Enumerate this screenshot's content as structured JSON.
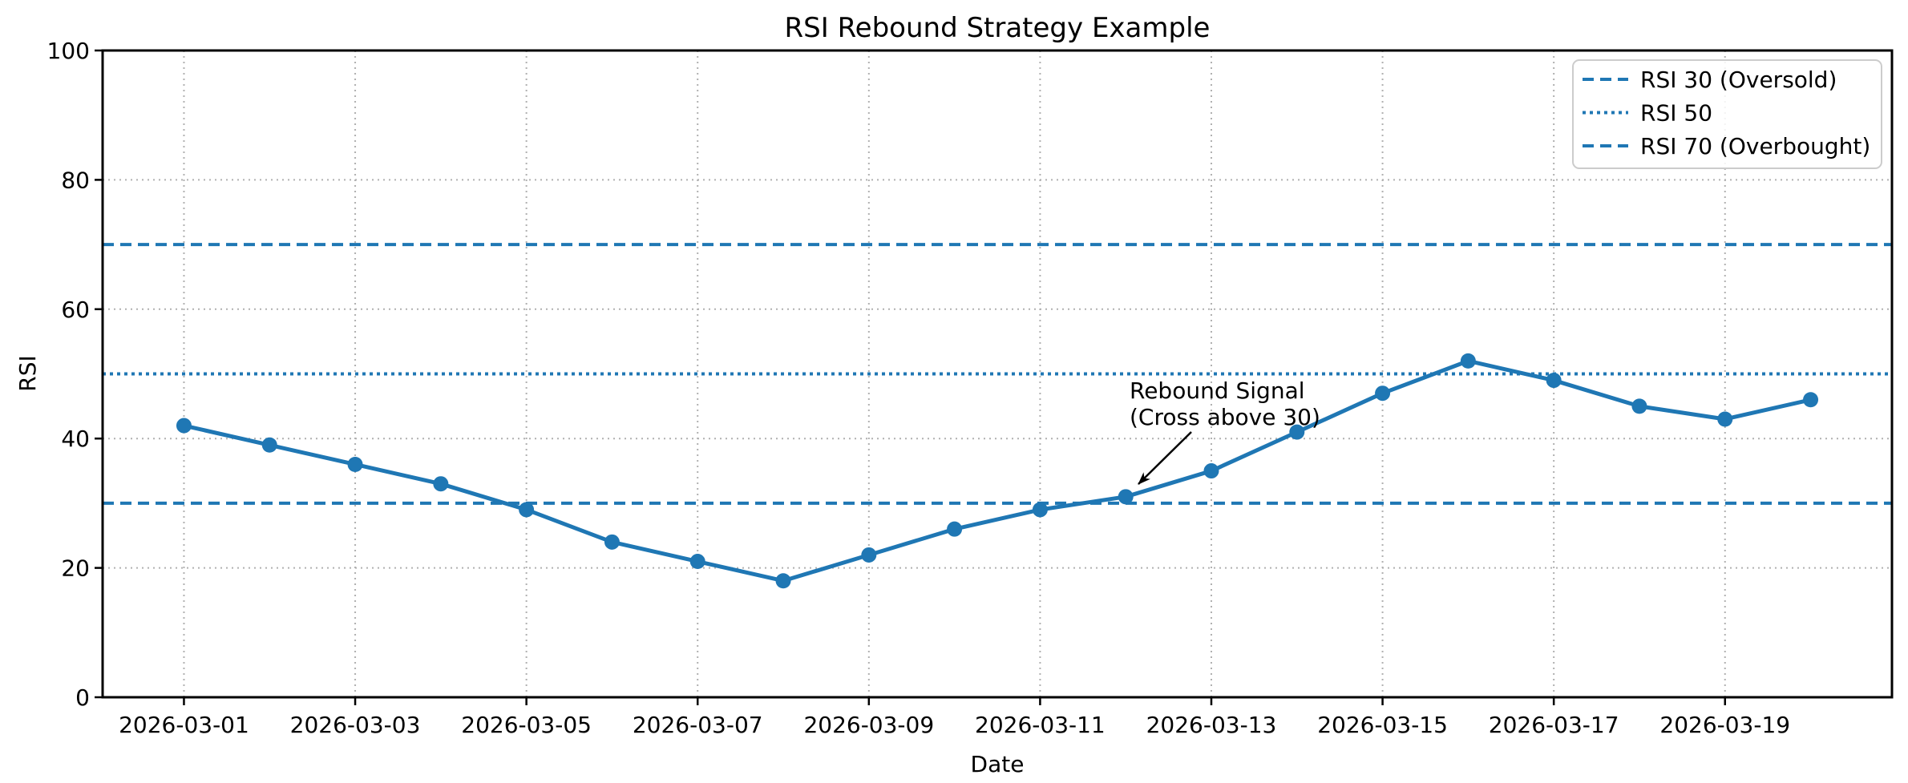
{
  "chart_data": {
    "type": "line",
    "title": "RSI Rebound Strategy Example",
    "xlabel": "Date",
    "ylabel": "RSI",
    "x": [
      "2026-03-01",
      "2026-03-02",
      "2026-03-03",
      "2026-03-04",
      "2026-03-05",
      "2026-03-06",
      "2026-03-07",
      "2026-03-08",
      "2026-03-09",
      "2026-03-10",
      "2026-03-11",
      "2026-03-12",
      "2026-03-13",
      "2026-03-14",
      "2026-03-15",
      "2026-03-16",
      "2026-03-17",
      "2026-03-18",
      "2026-03-19",
      "2026-03-20"
    ],
    "series": [
      {
        "name": "RSI",
        "values": [
          42,
          39,
          36,
          33,
          29,
          24,
          21,
          18,
          22,
          26,
          29,
          31,
          35,
          41,
          47,
          52,
          49,
          45,
          43,
          46
        ],
        "color": "#1f77b4",
        "marker": "circle",
        "linestyle": "solid"
      }
    ],
    "reference_lines": [
      {
        "label": "RSI 30 (Oversold)",
        "value": 30,
        "style": "dashed",
        "color": "#1f77b4"
      },
      {
        "label": "RSI 50",
        "value": 50,
        "style": "dotted",
        "color": "#1f77b4"
      },
      {
        "label": "RSI 70 (Overbought)",
        "value": 70,
        "style": "dashed",
        "color": "#1f77b4"
      }
    ],
    "annotation": {
      "lines": [
        "Rebound Signal",
        "(Cross above 30)"
      ],
      "target_date": "2026-03-12",
      "target_value": 31
    },
    "xticks": [
      "2026-03-01",
      "2026-03-03",
      "2026-03-05",
      "2026-03-07",
      "2026-03-09",
      "2026-03-11",
      "2026-03-13",
      "2026-03-15",
      "2026-03-17",
      "2026-03-19"
    ],
    "yticks": [
      0,
      20,
      40,
      60,
      80,
      100
    ],
    "ylim": [
      0,
      100
    ],
    "grid": true,
    "legend_position": "upper right"
  },
  "colors": {
    "line": "#1f77b4",
    "grid": "#b0b0b0",
    "axis": "#000000",
    "legend_border": "#cccccc",
    "annotation": "#000000",
    "background": "#ffffff"
  }
}
